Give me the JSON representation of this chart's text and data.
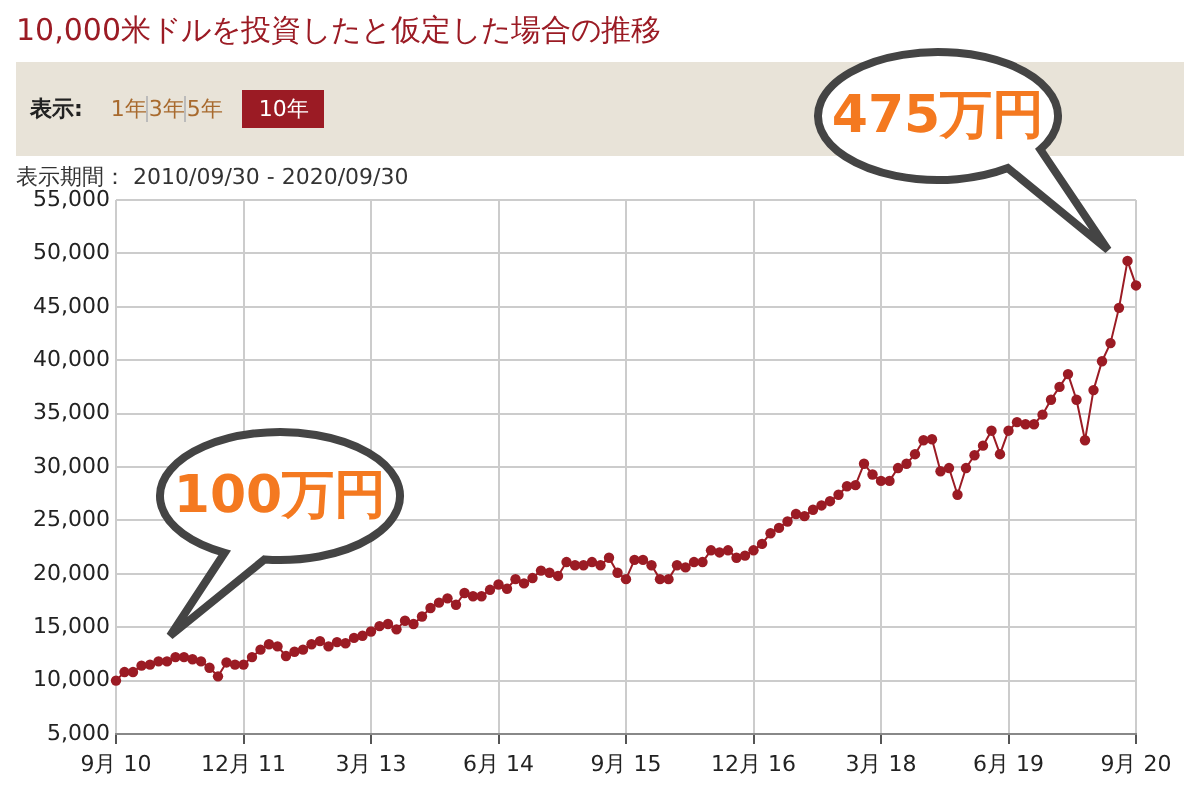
{
  "chart_data": {
    "type": "line",
    "title": "10,000米ドルを投資したと仮定した場合の推移",
    "subtitle": "表示期間： 2010/09/30 - 2020/09/30",
    "annotations": [
      "表示:",
      "1年",
      "3年",
      "5年",
      "10年",
      "100万円",
      "475万円"
    ],
    "categories": [
      "9月 10",
      null,
      null,
      null,
      null,
      null,
      null,
      null,
      null,
      null,
      null,
      null,
      null,
      null,
      null,
      "12月 11",
      null,
      null,
      null,
      null,
      null,
      null,
      null,
      null,
      null,
      null,
      null,
      null,
      null,
      null,
      "3月 13",
      null,
      null,
      null,
      null,
      null,
      null,
      null,
      null,
      null,
      null,
      null,
      null,
      null,
      null,
      "6月 14",
      null,
      null,
      null,
      null,
      null,
      null,
      null,
      null,
      null,
      null,
      null,
      null,
      null,
      null,
      "9月 15",
      null,
      null,
      null,
      null,
      null,
      null,
      null,
      null,
      null,
      null,
      null,
      null,
      null,
      null,
      "12月 16",
      null,
      null,
      null,
      null,
      null,
      null,
      null,
      null,
      null,
      null,
      null,
      null,
      null,
      null,
      "3月 18",
      null,
      null,
      null,
      null,
      null,
      null,
      null,
      null,
      null,
      null,
      null,
      null,
      null,
      null,
      "6月 19",
      null,
      null,
      null,
      null,
      null,
      null,
      null,
      null,
      null,
      null,
      null,
      null,
      null,
      null,
      "9月 20"
    ],
    "series": [
      {
        "color": "#9b1b24",
        "values": [
          10000,
          10800,
          10800,
          11400,
          11500,
          11800,
          11800,
          12200,
          12200,
          12000,
          11800,
          11200,
          10400,
          11700,
          11500,
          11500,
          12200,
          12900,
          13400,
          13200,
          12300,
          12700,
          12900,
          13400,
          13700,
          13200,
          13600,
          13500,
          14000,
          14200,
          14600,
          15100,
          15300,
          14800,
          15600,
          15300,
          16000,
          16800,
          17300,
          17700,
          17100,
          18200,
          17900,
          17900,
          18500,
          19000,
          18600,
          19500,
          19100,
          19600,
          20300,
          20100,
          19800,
          21100,
          20800,
          20800,
          21100,
          20800,
          21500,
          20100,
          19500,
          21300,
          21300,
          20800,
          19500,
          19500,
          20800,
          20600,
          21100,
          21100,
          22200,
          22000,
          22200,
          21500,
          21700,
          22200,
          22800,
          23800,
          24300,
          24900,
          25600,
          25400,
          26000,
          26400,
          26800,
          27400,
          28200,
          28300,
          30300,
          29300,
          28700,
          28700,
          29900,
          30300,
          31200,
          32500,
          32600,
          29600,
          29900,
          27400,
          29900,
          31100,
          32000,
          33400,
          31200,
          33400,
          34200,
          34000,
          34000,
          34900,
          36300,
          37500,
          38700,
          36300,
          32500,
          37200,
          39900,
          41600,
          44900,
          49300,
          47000
        ]
      }
    ],
    "ylim": [
      5000,
      55000
    ],
    "yticks": [
      {
        "value": 5000,
        "label": "5,000"
      },
      {
        "value": 10000,
        "label": "10,000"
      },
      {
        "value": 15000,
        "label": "15,000"
      },
      {
        "value": 20000,
        "label": "20,000"
      },
      {
        "value": 25000,
        "label": "25,000"
      },
      {
        "value": 30000,
        "label": "30,000"
      },
      {
        "value": 35000,
        "label": "35,000"
      },
      {
        "value": 40000,
        "label": "40,000"
      },
      {
        "value": 45000,
        "label": "45,000"
      },
      {
        "value": 50000,
        "label": "50,000"
      },
      {
        "value": 55000,
        "label": "55,000"
      }
    ],
    "grid": true,
    "legend": false,
    "marker": "circle",
    "line_style": "solid"
  }
}
